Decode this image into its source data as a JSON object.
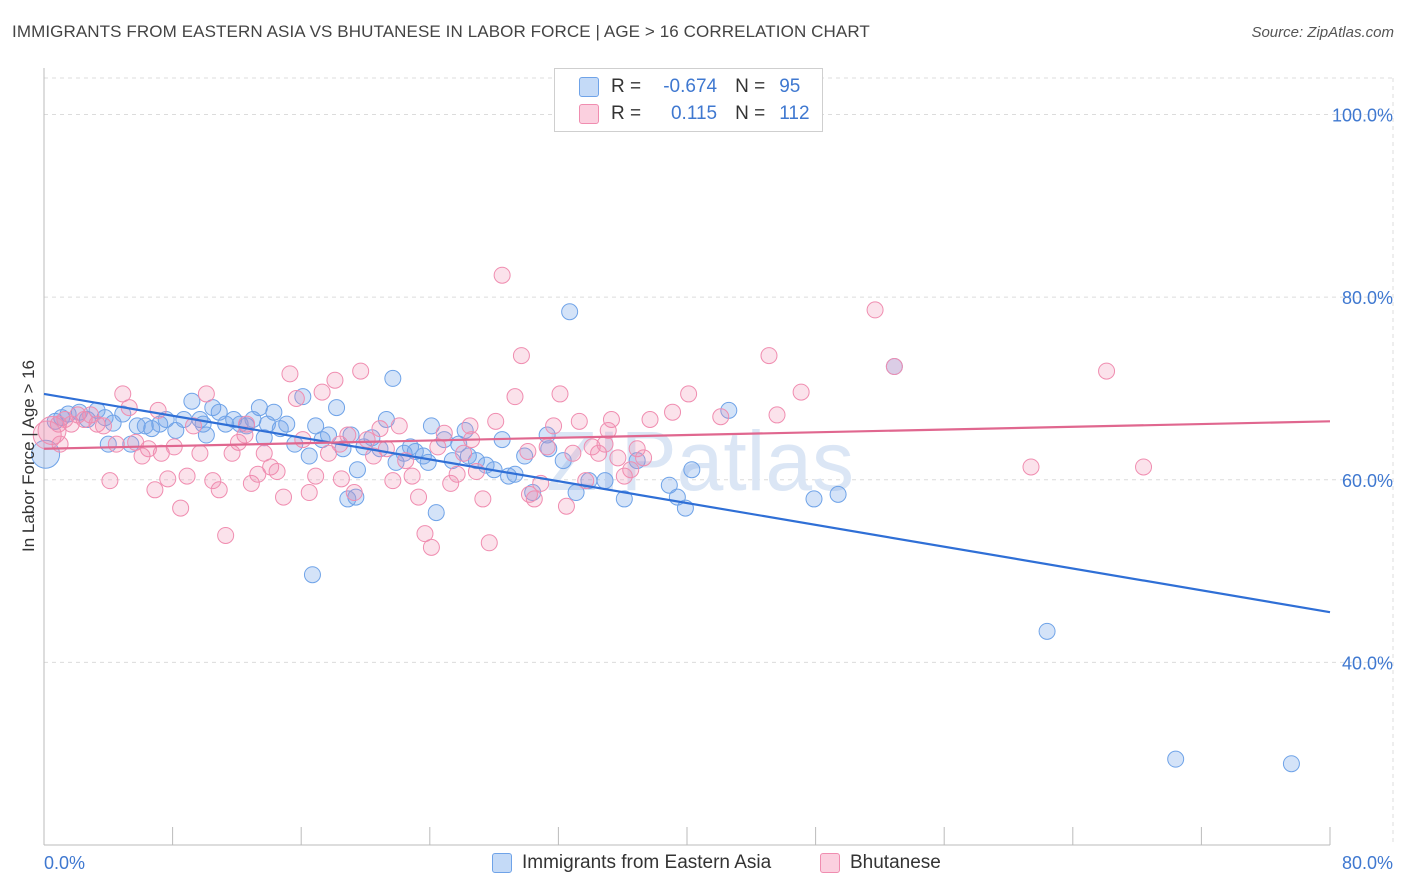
{
  "title": "IMMIGRANTS FROM EASTERN ASIA VS BHUTANESE IN LABOR FORCE | AGE > 16 CORRELATION CHART",
  "source": "Source: ZipAtlas.com",
  "watermark": "ZIPatlas",
  "legend": {
    "rows": [
      {
        "r_label": "R =",
        "r_value": "-0.674",
        "n_label": "N =",
        "n_value": "95",
        "color": "#6fa3e8"
      },
      {
        "r_label": "R =",
        "r_value": "0.115",
        "n_label": "N =",
        "n_value": "112",
        "color": "#f08db0"
      }
    ]
  },
  "bottom_legend": {
    "series1": "Immigrants from Eastern Asia",
    "series2": "Bhutanese"
  },
  "chart_data": {
    "type": "scatter",
    "title": "IMMIGRANTS FROM EASTERN ASIA VS BHUTANESE IN LABOR FORCE | AGE > 16 CORRELATION CHART",
    "xlabel": "",
    "ylabel": "In Labor Force | Age > 16",
    "xlim": [
      0,
      80
    ],
    "ylim": [
      20,
      104
    ],
    "x_tick_labels": [
      "0.0%",
      "80.0%"
    ],
    "y_ticks": [
      40,
      60,
      80,
      100
    ],
    "y_tick_labels": [
      "40.0%",
      "60.0%",
      "80.0%",
      "100.0%"
    ],
    "grid": true,
    "legend_position": "top-center",
    "colors": {
      "blue": "#6fa3e8",
      "blue_line": "#2f6fd6",
      "pink": "#f08db0",
      "pink_line": "#e0678f",
      "axis_text": "#3f78d0"
    },
    "series": [
      {
        "name": "Immigrants from Eastern Asia",
        "color": "blue",
        "trend": {
          "x": [
            0,
            80
          ],
          "y": [
            69.4,
            45.5
          ]
        },
        "points": [
          [
            0.1,
            62.8
          ],
          [
            0.7,
            66.4
          ],
          [
            1.1,
            66.8
          ],
          [
            1.5,
            67.2
          ],
          [
            2.2,
            67.4
          ],
          [
            2.7,
            66.6
          ],
          [
            3.3,
            67.6
          ],
          [
            3.8,
            66.8
          ],
          [
            4.3,
            66.2
          ],
          [
            4.9,
            67.2
          ],
          [
            5.4,
            63.9
          ],
          [
            5.8,
            65.9
          ],
          [
            6.3,
            65.9
          ],
          [
            6.7,
            65.6
          ],
          [
            7.2,
            66.1
          ],
          [
            7.6,
            66.6
          ],
          [
            8.2,
            65.4
          ],
          [
            8.7,
            66.6
          ],
          [
            9.2,
            68.6
          ],
          [
            9.7,
            66.6
          ],
          [
            10.1,
            64.9
          ],
          [
            10.5,
            67.9
          ],
          [
            10.9,
            67.4
          ],
          [
            11.3,
            66.1
          ],
          [
            11.8,
            66.6
          ],
          [
            12.2,
            66.1
          ],
          [
            12.6,
            65.9
          ],
          [
            13.0,
            66.6
          ],
          [
            13.4,
            67.9
          ],
          [
            13.9,
            66.1
          ],
          [
            14.3,
            67.4
          ],
          [
            14.7,
            65.6
          ],
          [
            15.1,
            66.1
          ],
          [
            15.6,
            63.9
          ],
          [
            16.1,
            69.1
          ],
          [
            16.5,
            62.6
          ],
          [
            16.9,
            65.9
          ],
          [
            17.3,
            64.4
          ],
          [
            17.7,
            64.9
          ],
          [
            18.2,
            67.9
          ],
          [
            18.6,
            63.4
          ],
          [
            19.1,
            64.9
          ],
          [
            19.5,
            61.1
          ],
          [
            19.9,
            63.6
          ],
          [
            20.4,
            64.6
          ],
          [
            20.9,
            63.4
          ],
          [
            21.3,
            66.6
          ],
          [
            21.9,
            61.9
          ],
          [
            22.4,
            62.9
          ],
          [
            22.8,
            63.6
          ],
          [
            23.1,
            63.1
          ],
          [
            23.6,
            62.6
          ],
          [
            24.1,
            65.9
          ],
          [
            24.4,
            56.4
          ],
          [
            24.9,
            64.4
          ],
          [
            25.4,
            62.1
          ],
          [
            25.8,
            63.9
          ],
          [
            26.4,
            62.6
          ],
          [
            26.9,
            62.1
          ],
          [
            27.5,
            61.6
          ],
          [
            28.0,
            61.1
          ],
          [
            28.5,
            64.4
          ],
          [
            29.3,
            60.6
          ],
          [
            29.9,
            62.6
          ],
          [
            30.4,
            58.6
          ],
          [
            31.3,
            64.9
          ],
          [
            32.3,
            62.1
          ],
          [
            33.1,
            58.6
          ],
          [
            33.9,
            59.9
          ],
          [
            34.9,
            59.9
          ],
          [
            36.1,
            57.9
          ],
          [
            36.9,
            62.1
          ],
          [
            38.9,
            59.4
          ],
          [
            39.4,
            58.1
          ],
          [
            39.9,
            56.9
          ],
          [
            40.3,
            61.1
          ],
          [
            42.6,
            67.6
          ],
          [
            47.9,
            57.9
          ],
          [
            49.4,
            58.4
          ],
          [
            52.9,
            72.4
          ],
          [
            62.4,
            43.4
          ],
          [
            70.4,
            29.4
          ],
          [
            77.6,
            28.9
          ],
          [
            16.7,
            49.6
          ],
          [
            21.7,
            71.1
          ],
          [
            32.7,
            78.4
          ],
          [
            28.9,
            60.4
          ],
          [
            19.4,
            58.1
          ],
          [
            23.9,
            61.9
          ],
          [
            31.4,
            63.4
          ],
          [
            26.2,
            65.4
          ],
          [
            13.7,
            64.6
          ],
          [
            4.0,
            63.9
          ],
          [
            18.9,
            57.9
          ],
          [
            9.9,
            66.1
          ]
        ]
      },
      {
        "name": "Bhutanese",
        "color": "pink",
        "trend": {
          "x": [
            0,
            80
          ],
          "y": [
            63.4,
            66.4
          ]
        },
        "points": [
          [
            0.2,
            64.9
          ],
          [
            0.5,
            65.4
          ],
          [
            0.9,
            66.1
          ],
          [
            1.3,
            66.6
          ],
          [
            1.7,
            66.1
          ],
          [
            2.1,
            67.1
          ],
          [
            2.5,
            66.6
          ],
          [
            2.9,
            67.1
          ],
          [
            3.3,
            66.1
          ],
          [
            3.7,
            65.9
          ],
          [
            4.1,
            59.9
          ],
          [
            4.5,
            63.9
          ],
          [
            4.9,
            69.4
          ],
          [
            5.3,
            67.9
          ],
          [
            5.7,
            64.1
          ],
          [
            6.1,
            62.6
          ],
          [
            6.5,
            63.4
          ],
          [
            6.9,
            58.9
          ],
          [
            7.3,
            62.9
          ],
          [
            7.7,
            60.1
          ],
          [
            8.1,
            63.6
          ],
          [
            8.5,
            56.9
          ],
          [
            8.9,
            60.4
          ],
          [
            9.3,
            65.9
          ],
          [
            9.7,
            62.9
          ],
          [
            10.1,
            69.4
          ],
          [
            10.5,
            59.9
          ],
          [
            10.9,
            58.9
          ],
          [
            11.3,
            53.9
          ],
          [
            11.7,
            62.9
          ],
          [
            12.1,
            64.1
          ],
          [
            12.5,
            64.9
          ],
          [
            12.9,
            59.6
          ],
          [
            13.3,
            60.6
          ],
          [
            13.7,
            62.9
          ],
          [
            14.1,
            61.4
          ],
          [
            14.5,
            60.9
          ],
          [
            14.9,
            58.1
          ],
          [
            15.3,
            71.6
          ],
          [
            15.7,
            68.9
          ],
          [
            16.1,
            64.4
          ],
          [
            16.5,
            58.6
          ],
          [
            16.9,
            60.4
          ],
          [
            17.3,
            69.6
          ],
          [
            17.7,
            62.9
          ],
          [
            18.1,
            70.9
          ],
          [
            18.5,
            60.1
          ],
          [
            18.9,
            64.9
          ],
          [
            19.3,
            58.6
          ],
          [
            19.7,
            71.9
          ],
          [
            20.1,
            64.4
          ],
          [
            20.5,
            62.6
          ],
          [
            20.9,
            65.6
          ],
          [
            21.3,
            63.4
          ],
          [
            21.7,
            59.9
          ],
          [
            22.1,
            65.9
          ],
          [
            22.5,
            62.1
          ],
          [
            22.9,
            60.4
          ],
          [
            23.3,
            58.1
          ],
          [
            23.7,
            54.1
          ],
          [
            24.1,
            52.6
          ],
          [
            24.5,
            63.6
          ],
          [
            24.9,
            65.1
          ],
          [
            25.3,
            59.6
          ],
          [
            25.7,
            60.6
          ],
          [
            26.1,
            62.9
          ],
          [
            26.5,
            65.9
          ],
          [
            26.9,
            60.9
          ],
          [
            27.3,
            57.9
          ],
          [
            27.7,
            53.1
          ],
          [
            28.1,
            66.4
          ],
          [
            28.5,
            82.4
          ],
          [
            29.3,
            69.1
          ],
          [
            29.7,
            73.6
          ],
          [
            30.1,
            63.1
          ],
          [
            30.5,
            57.9
          ],
          [
            30.9,
            59.6
          ],
          [
            31.3,
            63.6
          ],
          [
            31.7,
            65.9
          ],
          [
            32.1,
            69.4
          ],
          [
            32.5,
            57.1
          ],
          [
            32.9,
            62.9
          ],
          [
            33.3,
            66.4
          ],
          [
            33.7,
            59.9
          ],
          [
            34.1,
            63.6
          ],
          [
            34.5,
            62.9
          ],
          [
            34.9,
            63.9
          ],
          [
            35.3,
            66.6
          ],
          [
            35.7,
            62.4
          ],
          [
            36.1,
            60.4
          ],
          [
            36.5,
            61.1
          ],
          [
            36.9,
            63.4
          ],
          [
            37.3,
            62.4
          ],
          [
            37.7,
            66.6
          ],
          [
            39.1,
            67.4
          ],
          [
            40.1,
            69.4
          ],
          [
            42.1,
            66.9
          ],
          [
            45.1,
            73.6
          ],
          [
            45.6,
            67.1
          ],
          [
            47.1,
            69.6
          ],
          [
            51.7,
            78.6
          ],
          [
            52.9,
            72.4
          ],
          [
            61.4,
            61.4
          ],
          [
            68.4,
            61.4
          ],
          [
            66.1,
            71.9
          ],
          [
            7.1,
            67.6
          ],
          [
            12.6,
            66.1
          ],
          [
            18.4,
            63.9
          ],
          [
            26.6,
            64.4
          ],
          [
            30.2,
            58.4
          ],
          [
            35.1,
            65.4
          ],
          [
            1.0,
            63.9
          ]
        ]
      }
    ]
  }
}
